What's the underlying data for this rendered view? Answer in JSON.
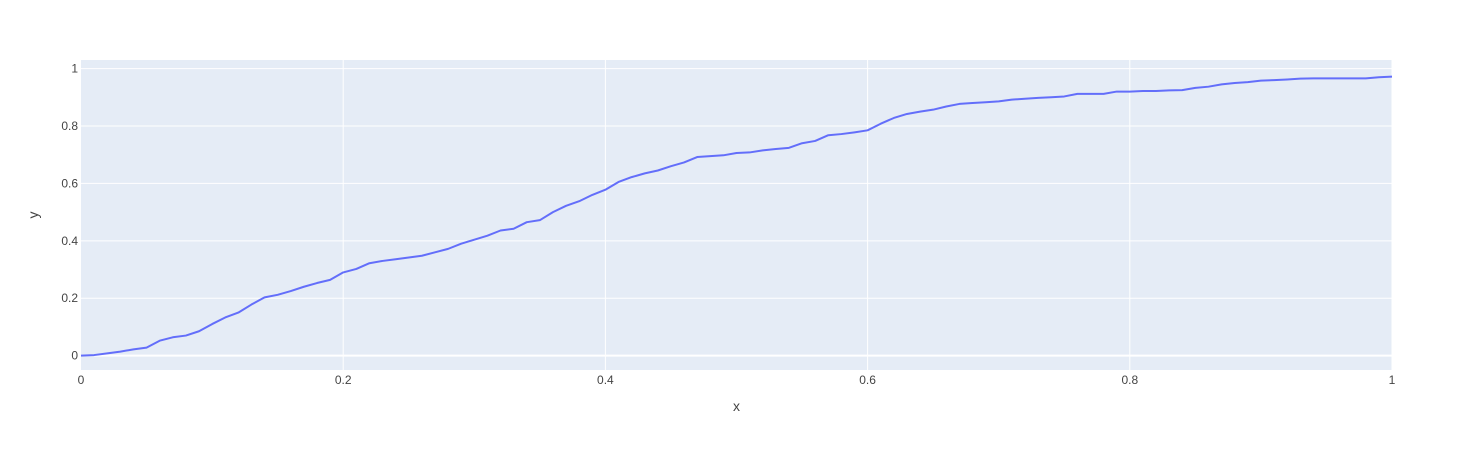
{
  "colors": {
    "plot_background": "#e5ecf6",
    "grid": "#ffffff",
    "line": "#636efa",
    "text": "#444444",
    "page_background": "#ffffff"
  },
  "chart_data": {
    "type": "line",
    "xlabel": "x",
    "ylabel": "y",
    "xlim": [
      0,
      1
    ],
    "ylim": [
      -0.05,
      1.03
    ],
    "grid": true,
    "x_ticks": [
      0,
      0.2,
      0.4,
      0.6,
      0.8,
      1
    ],
    "x_tick_labels": [
      "0",
      "0.2",
      "0.4",
      "0.6",
      "0.8",
      "1"
    ],
    "y_ticks": [
      0,
      0.2,
      0.4,
      0.6,
      0.8,
      1
    ],
    "y_tick_labels": [
      "0",
      "0.2",
      "0.4",
      "0.6",
      "0.8",
      "1"
    ],
    "series": [
      {
        "x": [
          0,
          0.01,
          0.02,
          0.03,
          0.04,
          0.05,
          0.06,
          0.07,
          0.08,
          0.09,
          0.1,
          0.11,
          0.12,
          0.13,
          0.14,
          0.15,
          0.16,
          0.17,
          0.18,
          0.19,
          0.2,
          0.21,
          0.22,
          0.23,
          0.24,
          0.25,
          0.26,
          0.27,
          0.28,
          0.29,
          0.3,
          0.31,
          0.32,
          0.33,
          0.34,
          0.35,
          0.36,
          0.37,
          0.38,
          0.39,
          0.4,
          0.41,
          0.42,
          0.43,
          0.44,
          0.45,
          0.46,
          0.47,
          0.48,
          0.49,
          0.5,
          0.51,
          0.52,
          0.53,
          0.54,
          0.55,
          0.56,
          0.57,
          0.58,
          0.59,
          0.6,
          0.61,
          0.62,
          0.63,
          0.64,
          0.65,
          0.66,
          0.67,
          0.68,
          0.69,
          0.7,
          0.71,
          0.72,
          0.73,
          0.74,
          0.75,
          0.76,
          0.77,
          0.78,
          0.79,
          0.8,
          0.81,
          0.82,
          0.83,
          0.84,
          0.85,
          0.86,
          0.87,
          0.88,
          0.89,
          0.9,
          0.91,
          0.92,
          0.93,
          0.94,
          0.95,
          0.96,
          0.97,
          0.98,
          0.99,
          1.0
        ],
        "y": [
          0,
          0.002,
          0.008,
          0.014,
          0.022,
          0.028,
          0.052,
          0.064,
          0.07,
          0.085,
          0.11,
          0.133,
          0.15,
          0.178,
          0.203,
          0.212,
          0.225,
          0.24,
          0.253,
          0.264,
          0.29,
          0.302,
          0.322,
          0.33,
          0.336,
          0.342,
          0.348,
          0.36,
          0.372,
          0.39,
          0.404,
          0.418,
          0.436,
          0.442,
          0.465,
          0.472,
          0.5,
          0.522,
          0.538,
          0.56,
          0.578,
          0.605,
          0.622,
          0.635,
          0.645,
          0.66,
          0.673,
          0.692,
          0.695,
          0.698,
          0.706,
          0.708,
          0.715,
          0.72,
          0.724,
          0.74,
          0.748,
          0.768,
          0.772,
          0.778,
          0.785,
          0.808,
          0.828,
          0.842,
          0.85,
          0.857,
          0.868,
          0.877,
          0.88,
          0.883,
          0.886,
          0.892,
          0.895,
          0.898,
          0.9,
          0.903,
          0.912,
          0.912,
          0.912,
          0.92,
          0.92,
          0.922,
          0.922,
          0.924,
          0.925,
          0.933,
          0.937,
          0.945,
          0.95,
          0.953,
          0.958,
          0.96,
          0.962,
          0.965,
          0.966,
          0.966,
          0.966,
          0.966,
          0.966,
          0.97,
          0.972
        ]
      }
    ]
  }
}
